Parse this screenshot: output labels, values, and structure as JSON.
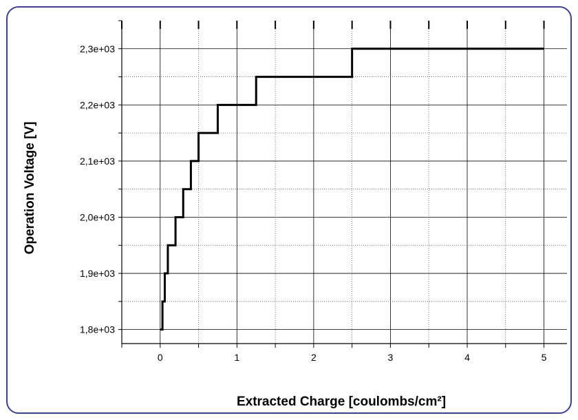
{
  "chart_data": {
    "type": "line",
    "title": "",
    "xlabel": "Extracted Charge [coulombs/cm²]",
    "ylabel": "Operation Voltage [V]",
    "xlim": [
      -0.5,
      5.3
    ],
    "ylim": [
      1775,
      2350
    ],
    "x_ticks": [
      0,
      1,
      2,
      3,
      4,
      5
    ],
    "x_tick_labels": [
      "0",
      "1",
      "2",
      "3",
      "4",
      "5"
    ],
    "y_ticks": [
      1800,
      1900,
      2000,
      2100,
      2200,
      2300
    ],
    "y_tick_labels": [
      "1,8e+03",
      "1,9e+03",
      "2,0e+03",
      "2,1e+03",
      "2,2e+03",
      "2,3e+03"
    ],
    "grid": true,
    "series": [
      {
        "line_color": "#000000",
        "step": true,
        "x": [
          0,
          0.03,
          0.06,
          0.1,
          0.2,
          0.3,
          0.4,
          0.5,
          0.75,
          1.25,
          2.5,
          5.0
        ],
        "y": [
          1800,
          1850,
          1900,
          1950,
          2000,
          2050,
          2100,
          2150,
          2200,
          2250,
          2300,
          2300
        ]
      }
    ]
  }
}
